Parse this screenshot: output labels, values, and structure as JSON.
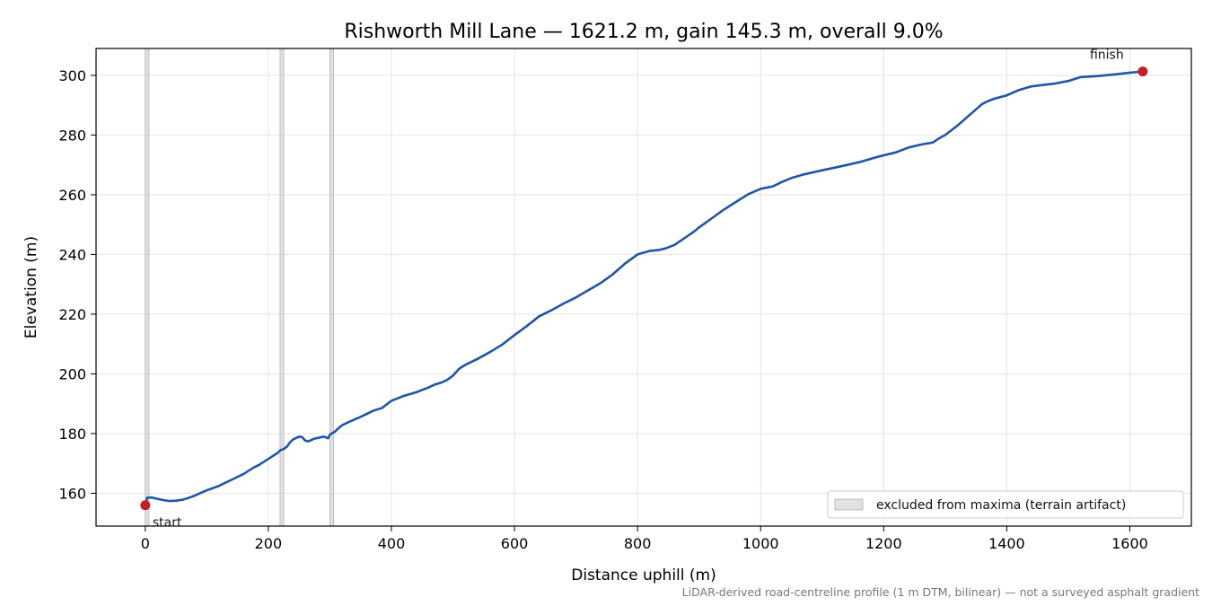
{
  "chart_data": {
    "type": "line",
    "title": "Rishworth Mill Lane — 1621.2 m, gain 145.3 m, overall 9.0%",
    "xlabel": "Distance uphill (m)",
    "ylabel": "Elevation (m)",
    "xlim": [
      -80,
      1700
    ],
    "ylim": [
      149,
      309
    ],
    "xticks": [
      0,
      200,
      400,
      600,
      800,
      1000,
      1200,
      1400,
      1600
    ],
    "yticks": [
      160,
      180,
      200,
      220,
      240,
      260,
      280,
      300
    ],
    "grid": true,
    "line_color": "#1f56a8",
    "marker_color": "#c81d25",
    "band_color": "#c8c8c8",
    "series": [
      {
        "x": [
          0,
          3,
          10,
          20,
          30,
          40,
          50,
          60,
          70,
          80,
          90,
          100,
          120,
          140,
          160,
          175,
          185,
          200,
          215,
          220,
          225,
          230,
          235,
          240,
          250,
          255,
          260,
          265,
          275,
          290,
          297,
          300,
          303,
          308,
          315,
          320,
          330,
          350,
          370,
          385,
          395,
          400,
          420,
          440,
          460,
          470,
          480,
          490,
          500,
          510,
          520,
          540,
          560,
          580,
          590,
          600,
          620,
          640,
          660,
          680,
          700,
          720,
          740,
          760,
          780,
          800,
          820,
          835,
          845,
          860,
          875,
          890,
          895,
          900,
          910,
          920,
          940,
          960,
          980,
          1000,
          1020,
          1035,
          1050,
          1070,
          1100,
          1130,
          1160,
          1190,
          1220,
          1240,
          1260,
          1280,
          1290,
          1300,
          1320,
          1340,
          1360,
          1370,
          1380,
          1400,
          1420,
          1440,
          1460,
          1480,
          1500,
          1520,
          1550,
          1580,
          1600,
          1621
        ],
        "y": [
          156,
          158.5,
          158.6,
          158.1,
          157.7,
          157.4,
          157.5,
          157.8,
          158.4,
          159.2,
          160.1,
          161,
          162.5,
          164.5,
          166.5,
          168.5,
          169.5,
          171.5,
          173.5,
          174.5,
          174.8,
          175.6,
          177,
          178,
          179,
          178.8,
          177.6,
          177.4,
          178.3,
          179,
          178.4,
          179.6,
          180,
          180.6,
          182,
          182.8,
          183.8,
          185.6,
          187.6,
          188.6,
          190.2,
          191,
          192.6,
          193.8,
          195.4,
          196.4,
          197,
          197.9,
          199.4,
          201.7,
          203,
          205,
          207.3,
          209.8,
          211.4,
          213,
          216,
          219.3,
          221.3,
          223.6,
          225.6,
          228,
          230.4,
          233.4,
          237,
          240,
          241.2,
          241.5,
          242,
          243.2,
          245.3,
          247.4,
          248.2,
          249.1,
          250.5,
          252,
          255,
          257.6,
          260.2,
          262,
          262.8,
          264.3,
          265.6,
          266.8,
          268.2,
          269.5,
          270.9,
          272.7,
          274.2,
          275.8,
          276.8,
          277.5,
          278.9,
          280,
          283.2,
          286.8,
          290.4,
          291.4,
          292.2,
          293.3,
          295.1,
          296.3,
          296.8,
          297.3,
          298.1,
          299.4,
          299.8,
          300.4,
          300.9,
          301.3
        ]
      }
    ],
    "excluded_bands": [
      [
        0,
        6
      ],
      [
        219,
        225
      ],
      [
        300,
        306
      ]
    ],
    "annotations": {
      "start": {
        "label": "start",
        "x": 0,
        "y": 156
      },
      "finish": {
        "label": "finish",
        "x": 1621,
        "y": 301.3
      }
    },
    "legend": {
      "placement": "lower-right",
      "entry": "excluded from maxima (terrain artifact)"
    },
    "footnote": "LiDAR-derived road-centreline profile (1 m DTM, bilinear) — not a surveyed asphalt gradient"
  }
}
